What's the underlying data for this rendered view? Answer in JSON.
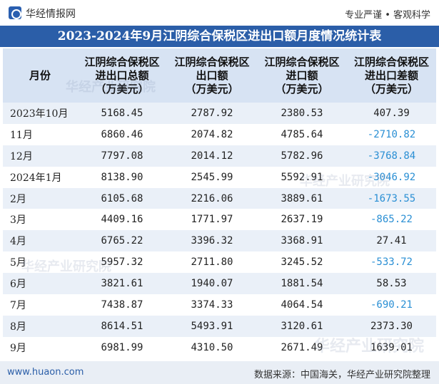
{
  "header": {
    "site_name": "华经情报网",
    "slogan": "专业严谨 • 客观科学"
  },
  "title": "2023-2024年9月江阴综合保税区进出口额月度情况统计表",
  "table": {
    "columns": [
      {
        "line1": "月份"
      },
      {
        "line1": "江阴综合保税区",
        "line2": "进出口总额",
        "line3": "（万美元）"
      },
      {
        "line1": "江阴综合保税区",
        "line2": "出口额",
        "line3": "（万美元）"
      },
      {
        "line1": "江阴综合保税区",
        "line2": "进口额",
        "line3": "（万美元）"
      },
      {
        "line1": "江阴综合保税区",
        "line2": "进出口差额",
        "line3": "（万美元）"
      }
    ],
    "rows": [
      {
        "month": "2023年10月",
        "total": "5168.45",
        "export": "2787.92",
        "import": "2380.53",
        "balance": "407.39",
        "negative": false
      },
      {
        "month": "11月",
        "total": "6860.46",
        "export": "2074.82",
        "import": "4785.64",
        "balance": "-2710.82",
        "negative": true
      },
      {
        "month": "12月",
        "total": "7797.08",
        "export": "2014.12",
        "import": "5782.96",
        "balance": "-3768.84",
        "negative": true
      },
      {
        "month": "2024年1月",
        "total": "8138.90",
        "export": "2545.99",
        "import": "5592.91",
        "balance": "-3046.92",
        "negative": true
      },
      {
        "month": "2月",
        "total": "6105.68",
        "export": "2216.06",
        "import": "3889.61",
        "balance": "-1673.55",
        "negative": true
      },
      {
        "month": "3月",
        "total": "4409.16",
        "export": "1771.97",
        "import": "2637.19",
        "balance": "-865.22",
        "negative": true
      },
      {
        "month": "4月",
        "total": "6765.22",
        "export": "3396.32",
        "import": "3368.91",
        "balance": "27.41",
        "negative": false
      },
      {
        "month": "5月",
        "total": "5957.32",
        "export": "2711.80",
        "import": "3245.52",
        "balance": "-533.72",
        "negative": true
      },
      {
        "month": "6月",
        "total": "3821.61",
        "export": "1940.07",
        "import": "1881.54",
        "balance": "58.53",
        "negative": false
      },
      {
        "month": "7月",
        "total": "7438.87",
        "export": "3374.33",
        "import": "4064.54",
        "balance": "-690.21",
        "negative": true
      },
      {
        "month": "8月",
        "total": "8614.51",
        "export": "5493.91",
        "import": "3120.61",
        "balance": "2373.30",
        "negative": false
      },
      {
        "month": "9月",
        "total": "6981.99",
        "export": "4310.50",
        "import": "2671.49",
        "balance": "1639.01",
        "negative": false
      }
    ]
  },
  "footer": {
    "url": "www.huaon.com",
    "source": "数据来源：中国海关，华经产业研究院整理"
  },
  "watermark": "华经产业研究院",
  "colors": {
    "title_bar": "#2b5ea8",
    "header_bg": "#d7e3f3",
    "odd_row_bg": "#eaf0f8",
    "negative_text": "#2a8fd4"
  }
}
